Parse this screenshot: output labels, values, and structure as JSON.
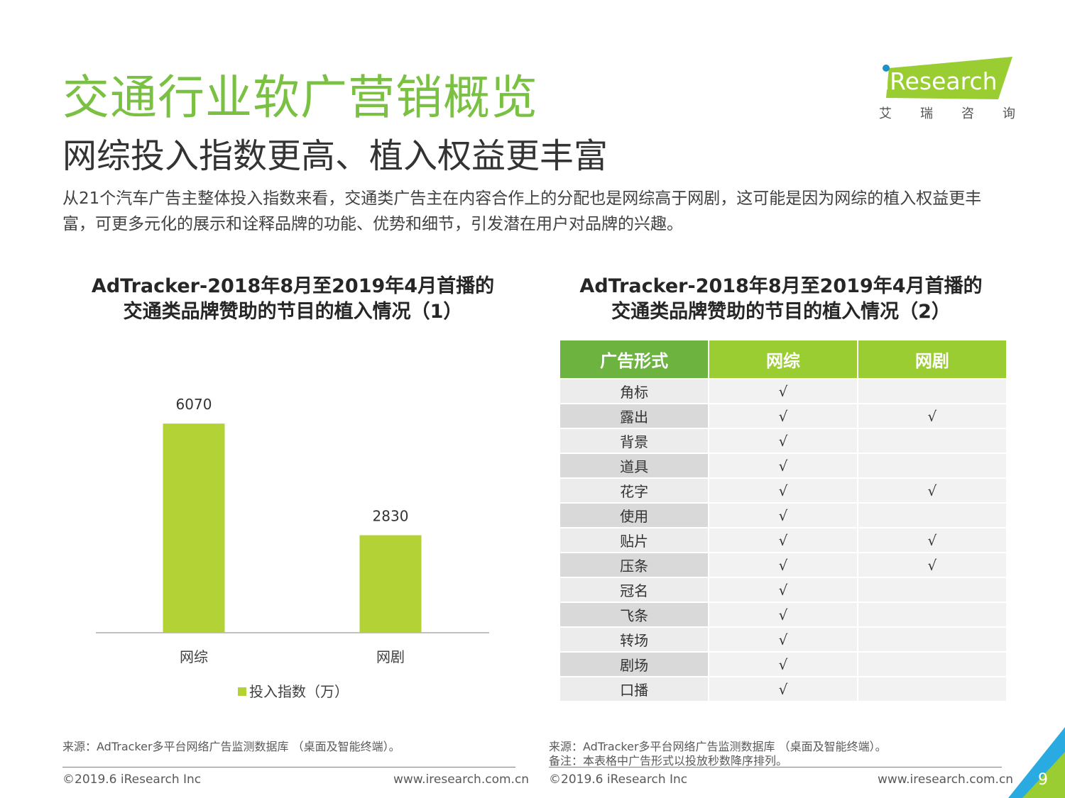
{
  "page": {
    "title": "交通行业软广营销概览",
    "subtitle": "网综投入指数更高、植入权益更丰富",
    "intro": "从21个汽车广告主整体投入指数来看，交通类广告主在内容合作上的分配也是网综高于网剧，这可能是因为网综的植入权益更丰富，可更多元化的展示和诠释品牌的功能、优势和细节，引发潜在用户对品牌的兴趣。",
    "page_number": "9"
  },
  "logo": {
    "text": "iResearch",
    "sub_chars": [
      "艾",
      "瑞",
      "咨",
      "询"
    ],
    "colors": {
      "green": "#9acd32",
      "blue": "#1e90c8"
    }
  },
  "colors": {
    "title_green": "#7ac143",
    "bar": "#b2d235",
    "header_dark": "#6cb33f",
    "header_light": "#9acd32"
  },
  "chart_data": {
    "type": "bar",
    "title_line1": "AdTracker-2018年8月至2019年4月首播的",
    "title_line2": "交通类品牌赞助的节目的植入情况（1）",
    "categories": [
      "网综",
      "网剧"
    ],
    "series": [
      {
        "name": "投入指数（万）",
        "values": [
          6070,
          2830
        ],
        "color": "#b2d235"
      }
    ],
    "data_labels": [
      "6070",
      "2830"
    ],
    "ylim": [
      0,
      7000
    ],
    "grid": false,
    "legend": "bottom"
  },
  "table": {
    "title_line1": "AdTracker-2018年8月至2019年4月首播的",
    "title_line2": "交通类品牌赞助的节目的植入情况（2）",
    "headers": [
      "广告形式",
      "网综",
      "网剧"
    ],
    "rows": [
      [
        "角标",
        "√",
        ""
      ],
      [
        "露出",
        "√",
        "√"
      ],
      [
        "背景",
        "√",
        ""
      ],
      [
        "道具",
        "√",
        ""
      ],
      [
        "花字",
        "√",
        "√"
      ],
      [
        "使用",
        "√",
        ""
      ],
      [
        "贴片",
        "√",
        "√"
      ],
      [
        "压条",
        "√",
        "√"
      ],
      [
        "冠名",
        "√",
        ""
      ],
      [
        "飞条",
        "√",
        ""
      ],
      [
        "转场",
        "√",
        ""
      ],
      [
        "剧场",
        "√",
        ""
      ],
      [
        "口播",
        "√",
        ""
      ]
    ]
  },
  "footer": {
    "source_left": "来源：AdTracker多平台网络广告监测数据库 （桌面及智能终端）。",
    "source_right": "来源：AdTracker多平台网络广告监测数据库 （桌面及智能终端）。",
    "note_right": "备注：本表格中广告形式以投放秒数降序排列。",
    "copyright": "©2019.6 iResearch Inc",
    "url": "www.iresearch.com.cn"
  }
}
